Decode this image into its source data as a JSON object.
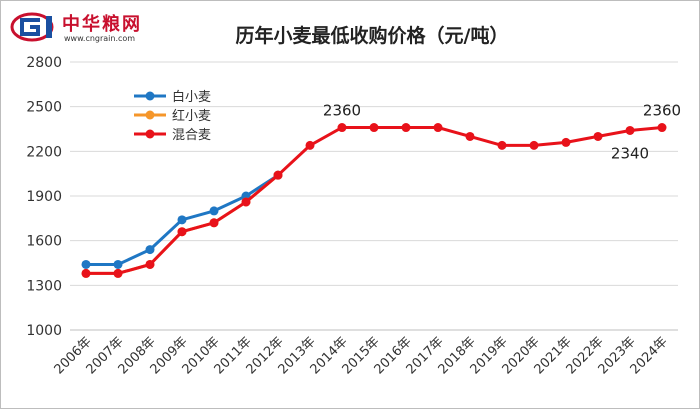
{
  "logo": {
    "name": "中华粮网",
    "url": "www.cngrain.com"
  },
  "chart_data": {
    "type": "line",
    "title": "历年小麦最低收购价格（元/吨）",
    "xlabel": "",
    "ylabel": "",
    "ylim": [
      1000,
      2800
    ],
    "yticks": [
      1000,
      1300,
      1600,
      1900,
      2200,
      2500,
      2800
    ],
    "grid": "horizontal",
    "legend_position": "top-left",
    "categories": [
      "2006年",
      "2007年",
      "2008年",
      "2009年",
      "2010年",
      "2011年",
      "2012年",
      "2013年",
      "2014年",
      "2015年",
      "2016年",
      "2017年",
      "2018年",
      "2019年",
      "2020年",
      "2021年",
      "2022年",
      "2023年",
      "2024年"
    ],
    "series": [
      {
        "name": "白小麦",
        "color": "#1f77c4",
        "values": [
          1440,
          1440,
          1540,
          1740,
          1800,
          1900,
          2040,
          null,
          null,
          null,
          null,
          null,
          null,
          null,
          null,
          null,
          null,
          null,
          null
        ]
      },
      {
        "name": "红小麦",
        "color": "#f5962a",
        "values": [
          1380,
          1380,
          1440,
          1660,
          1720,
          1860,
          2040,
          null,
          null,
          null,
          null,
          null,
          null,
          null,
          null,
          null,
          null,
          null,
          null
        ]
      },
      {
        "name": "混合麦",
        "color": "#e8121a",
        "values": [
          1380,
          1380,
          1440,
          1660,
          1720,
          1860,
          2040,
          2240,
          2360,
          2360,
          2360,
          2360,
          2300,
          2240,
          2240,
          2260,
          2300,
          2340,
          2360
        ]
      }
    ],
    "annotations": [
      {
        "text": "2360",
        "category": "2014年",
        "value": 2360,
        "position": "above"
      },
      {
        "text": "2360",
        "category": "2024年",
        "value": 2360,
        "position": "above"
      },
      {
        "text": "2340",
        "category": "2023年",
        "value": 2340,
        "position": "below"
      }
    ]
  }
}
